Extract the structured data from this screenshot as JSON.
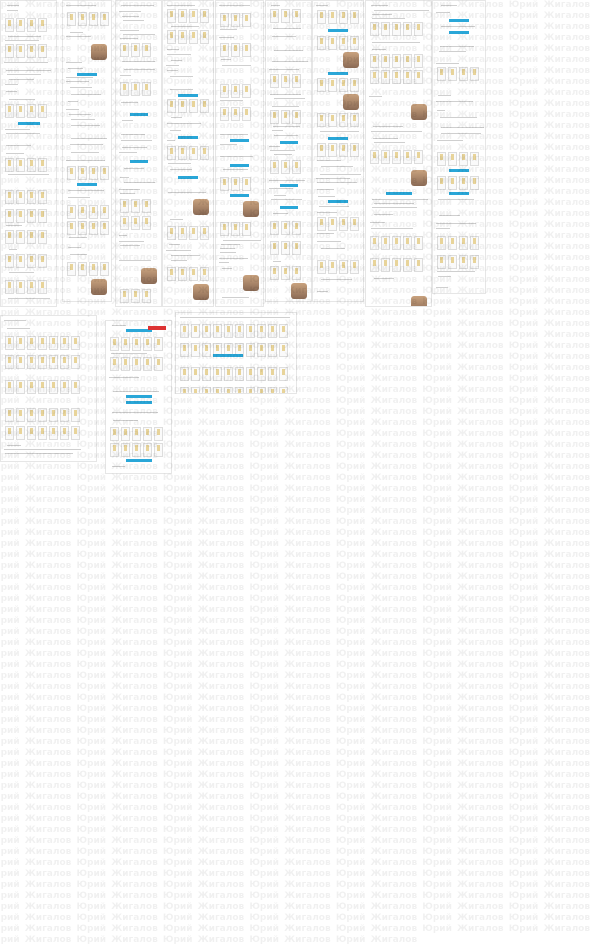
{
  "watermark": "Юрий Жигалов",
  "colors": {
    "accent": "#2aa7d8",
    "danger": "#dd3333",
    "photo": "#b08868"
  },
  "canvas": {
    "description_items": [
      "page-mockups"
    ]
  }
}
